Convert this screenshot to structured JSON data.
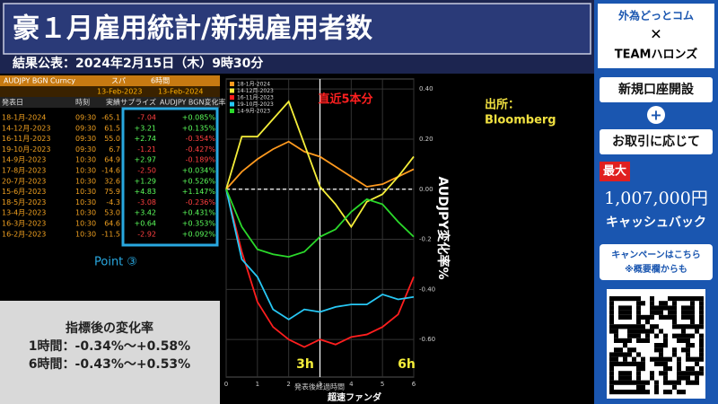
{
  "banner": {
    "title": "豪１月雇用統計/新規雇用者数",
    "subtitle": "結果公表：2024年2月15日（木）9時30分"
  },
  "table": {
    "settings": [
      "AUDJPY BGN Curncy",
      "スパ",
      "6時間",
      "13-Feb-2023",
      "13-Feb-2024"
    ],
    "header": [
      "発表日",
      "時刻",
      "実績",
      "サプライズ",
      "AUDJPY BGN変化率"
    ],
    "rows": [
      [
        "18-1月-2024",
        "09:30",
        "-65.1",
        "-7.04",
        "+0.085%"
      ],
      [
        "14-12月-2023",
        "09:30",
        "61.5",
        "+3.21",
        "+0.135%"
      ],
      [
        "16-11月-2023",
        "09:30",
        "55.0",
        "+2.74",
        "-0.354%"
      ],
      [
        "19-10月-2023",
        "09:30",
        "6.7",
        "-1.21",
        "-0.427%"
      ],
      [
        "14-9月-2023",
        "10:30",
        "64.9",
        "+2.97",
        "-0.189%"
      ],
      [
        "17-8月-2023",
        "10:30",
        "-14.6",
        "-2.50",
        "+0.034%"
      ],
      [
        "20-7月-2023",
        "10:30",
        "32.6",
        "+1.29",
        "+0.526%"
      ],
      [
        "15-6月-2023",
        "10:30",
        "75.9",
        "+4.83",
        "+1.147%"
      ],
      [
        "18-5月-2023",
        "10:30",
        "-4.3",
        "-3.08",
        "-0.236%"
      ],
      [
        "13-4月-2023",
        "10:30",
        "53.0",
        "+3.42",
        "+0.431%"
      ],
      [
        "16-3月-2023",
        "10:30",
        "64.6",
        "+0.64",
        "+0.353%"
      ],
      [
        "16-2月-2023",
        "10:30",
        "-11.5",
        "-2.92",
        "+0.092%"
      ]
    ]
  },
  "highlight_label": "Point ③",
  "summary": {
    "title": "指標後の変化率",
    "lines": [
      "1時間：-0.34%～+0.58%",
      "6時間：-0.43%～+0.53%"
    ]
  },
  "chart_data": {
    "type": "line",
    "x_label": "発表後経過時間",
    "y_label": "AUDJPY変化率%",
    "annotations": [
      "直近5本分",
      "3h",
      "6h"
    ],
    "source": [
      "出所：",
      "Bloomberg"
    ],
    "x": [
      0,
      0.5,
      1,
      1.5,
      2,
      2.5,
      3,
      3.5,
      4,
      4.5,
      5,
      5.5,
      6
    ],
    "xlim": [
      0,
      6
    ],
    "xticks": [
      0,
      1,
      2,
      3,
      4,
      5,
      6
    ],
    "ylim": [
      -0.75,
      0.44
    ],
    "yticks": [
      {
        "value": 0.4,
        "label": "0.40"
      },
      {
        "value": 0.2,
        "label": "0.20"
      },
      {
        "value": 0,
        "label": "0.00"
      },
      -0.2,
      {
        "value": -0.4,
        "label": "-0.40"
      },
      {
        "value": -0.6,
        "label": "-0.60"
      }
    ],
    "grid": true,
    "zero_line": true,
    "marker_x": 3,
    "series": [
      {
        "name": "18-1月-2024",
        "color": "#ff9a1f",
        "values": [
          0,
          0.07,
          0.12,
          0.16,
          0.19,
          0.15,
          0.13,
          0.09,
          0.05,
          0.01,
          0.02,
          0.05,
          0.08
        ]
      },
      {
        "name": "14-12月-2023",
        "color": "#f5ee3a",
        "values": [
          0,
          0.21,
          0.21,
          0.28,
          0.35,
          0.18,
          0.01,
          -0.06,
          -0.15,
          -0.05,
          -0.02,
          0.05,
          0.13
        ]
      },
      {
        "name": "16-11月-2023",
        "color": "#ff1e1e",
        "values": [
          0,
          -0.25,
          -0.45,
          -0.55,
          -0.6,
          -0.63,
          -0.6,
          -0.62,
          -0.59,
          -0.58,
          -0.55,
          -0.5,
          -0.35
        ]
      },
      {
        "name": "19-10月-2023",
        "color": "#27c8f5",
        "values": [
          0,
          -0.28,
          -0.35,
          -0.48,
          -0.52,
          -0.48,
          -0.49,
          -0.47,
          -0.46,
          -0.46,
          -0.42,
          -0.44,
          -0.43
        ]
      },
      {
        "name": "14-9月-2023",
        "color": "#2bd92b",
        "values": [
          0,
          -0.15,
          -0.24,
          -0.26,
          -0.27,
          -0.25,
          -0.19,
          -0.16,
          -0.09,
          -0.04,
          -0.06,
          -0.13,
          -0.19
        ]
      }
    ]
  },
  "watermark": "超速ファンダ",
  "sidebar": {
    "brand": "外為どっとコム",
    "cross": "✕",
    "partner": "TEAMハロンズ",
    "offer": "新規口座開設",
    "plus": "+",
    "condition": "お取引に応じて",
    "max": "最大",
    "amount": "1,007,000円",
    "cashback": "キャッシュバック",
    "campaign": [
      "キャンペーンはこちら",
      "※概要欄からも"
    ]
  }
}
